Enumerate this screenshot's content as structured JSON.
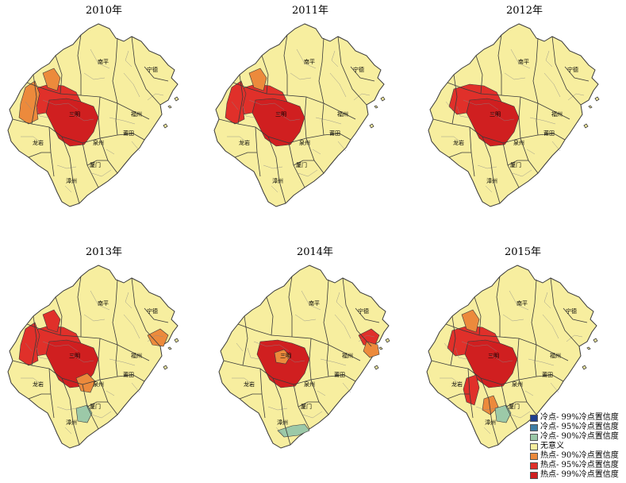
{
  "colors": {
    "cold99": "#1f3f8f",
    "cold95": "#3f7ea6",
    "cold90": "#9cc9a8",
    "none": "#f7ee9f",
    "hot90": "#ec8a3c",
    "hot95": "#e0302a",
    "hot99": "#d01f20",
    "border": "#3a3a3a"
  },
  "legend": [
    {
      "key": "cold99",
      "label": "冷点- 99%冷点置信度"
    },
    {
      "key": "cold95",
      "label": "冷点- 95%冷点置信度"
    },
    {
      "key": "cold90",
      "label": "冷点- 90%冷点置信度"
    },
    {
      "key": "none",
      "label": "无意义"
    },
    {
      "key": "hot90",
      "label": "热点- 90%冷点置信度"
    },
    {
      "key": "hot95",
      "label": "热点- 95%冷点置信度"
    },
    {
      "key": "hot99",
      "label": "热点- 99%冷点置信度"
    }
  ],
  "city_labels": [
    "南平",
    "宁德",
    "三明",
    "福州",
    "龙岩",
    "泉州",
    "莆田",
    "厦门",
    "漳州"
  ],
  "maps": [
    {
      "title": "2010年",
      "hotspots": [
        {
          "region": "sanming-center",
          "class": "hot99"
        },
        {
          "region": "sanming-north",
          "class": "hot95"
        },
        {
          "region": "nw-west",
          "class": "hot90"
        },
        {
          "region": "nw-east",
          "class": "hot90"
        }
      ]
    },
    {
      "title": "2011年",
      "hotspots": [
        {
          "region": "sanming-center",
          "class": "hot99"
        },
        {
          "region": "sanming-north",
          "class": "hot95"
        },
        {
          "region": "nw-west",
          "class": "hot95"
        },
        {
          "region": "nw-east",
          "class": "hot90"
        }
      ]
    },
    {
      "title": "2012年",
      "hotspots": [
        {
          "region": "sanming-center",
          "class": "hot99"
        },
        {
          "region": "sanming-north",
          "class": "hot95"
        }
      ]
    },
    {
      "title": "2013年",
      "hotspots": [
        {
          "region": "sanming-center",
          "class": "hot99"
        },
        {
          "region": "sanming-north",
          "class": "hot95"
        },
        {
          "region": "nw-west",
          "class": "hot95"
        },
        {
          "region": "nw-east",
          "class": "hot95"
        },
        {
          "region": "sanming-south",
          "class": "hot90"
        },
        {
          "region": "ningde-coast",
          "class": "hot90"
        },
        {
          "region": "xiamen",
          "class": "cold90"
        }
      ]
    },
    {
      "title": "2014年",
      "hotspots": [
        {
          "region": "sanming-center",
          "class": "hot99"
        },
        {
          "region": "sanming-inner",
          "class": "hot90"
        },
        {
          "region": "ningde-coast",
          "class": "hot95"
        },
        {
          "region": "ningde-coast2",
          "class": "hot90"
        },
        {
          "region": "zhangzhou-coast",
          "class": "cold90"
        }
      ]
    },
    {
      "title": "2015年",
      "hotspots": [
        {
          "region": "sanming-center",
          "class": "hot99"
        },
        {
          "region": "sanming-north",
          "class": "hot95"
        },
        {
          "region": "nw-east",
          "class": "hot90"
        },
        {
          "region": "longyan-east",
          "class": "hot95"
        },
        {
          "region": "quanzhou-west",
          "class": "hot90"
        },
        {
          "region": "xiamen",
          "class": "cold90"
        }
      ]
    }
  ]
}
